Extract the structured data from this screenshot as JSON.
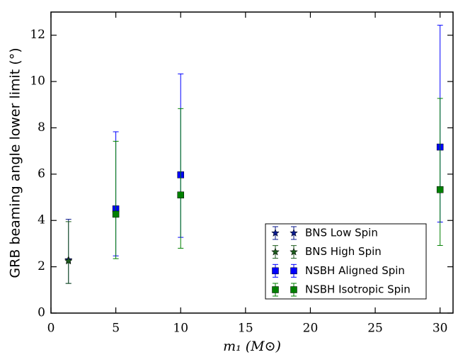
{
  "chart_data": {
    "type": "errorbar",
    "xlabel": "m₁ (M⊙)",
    "ylabel": "GRB beaming angle lower limit (°)",
    "xlim": [
      0,
      31
    ],
    "ylim": [
      0,
      13
    ],
    "xticks": [
      0,
      5,
      10,
      15,
      20,
      25,
      30
    ],
    "yticks": [
      0,
      2,
      4,
      6,
      8,
      10,
      12
    ],
    "legend": "lower right",
    "series": [
      {
        "name": "BNS Low Spin",
        "marker": "star",
        "color": "#0a1a8c",
        "x": [
          1.35
        ],
        "values": [
          2.3
        ],
        "lower": [
          1.28
        ],
        "upper": [
          4.05
        ]
      },
      {
        "name": "BNS High Spin",
        "marker": "star",
        "color": "#1c5a1c",
        "x": [
          1.35
        ],
        "values": [
          2.25
        ],
        "lower": [
          1.28
        ],
        "upper": [
          3.95
        ]
      },
      {
        "name": "NSBH Aligned Spin",
        "marker": "square",
        "color": "#0000ff",
        "x": [
          5,
          10,
          30
        ],
        "values": [
          4.5,
          5.97,
          7.17
        ],
        "lower": [
          2.47,
          3.27,
          3.93
        ],
        "upper": [
          7.83,
          10.33,
          12.43
        ]
      },
      {
        "name": "NSBH Isotropic Spin",
        "marker": "square",
        "color": "#008000",
        "x": [
          5,
          10,
          30
        ],
        "values": [
          4.27,
          5.1,
          5.33
        ],
        "lower": [
          2.35,
          2.8,
          2.92
        ],
        "upper": [
          7.42,
          8.83,
          9.27
        ]
      }
    ]
  }
}
